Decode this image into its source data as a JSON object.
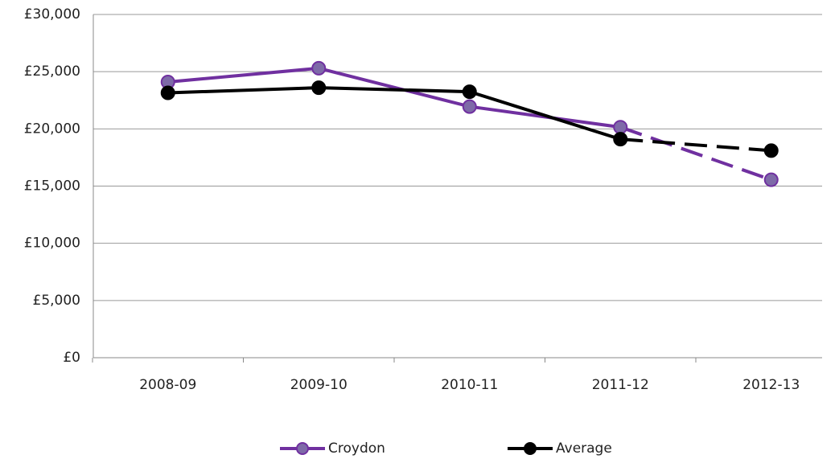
{
  "chart_data": {
    "type": "line",
    "categories": [
      "2008-09",
      "2009-10",
      "2010-11",
      "2011-12",
      "2012-13"
    ],
    "series": [
      {
        "name": "Croydon",
        "color": "#7030a0",
        "marker_color": "#7e6aa8",
        "values": [
          24100,
          25300,
          21950,
          20150,
          15550
        ],
        "dash_from": 3
      },
      {
        "name": "Average",
        "color": "#000000",
        "marker_color": "#000000",
        "values": [
          23150,
          23600,
          23250,
          19100,
          18100
        ],
        "dash_from": 3
      }
    ],
    "ylim": [
      0,
      30000
    ],
    "yticks": [
      {
        "value": 0,
        "label": "£0"
      },
      {
        "value": 5000,
        "label": "£5,000"
      },
      {
        "value": 10000,
        "label": "£10,000"
      },
      {
        "value": 15000,
        "label": "£15,000"
      },
      {
        "value": 20000,
        "label": "£20,000"
      },
      {
        "value": 25000,
        "label": "£25,000"
      },
      {
        "value": 30000,
        "label": "£30,000"
      }
    ],
    "grid": true,
    "legend": "bottom"
  }
}
